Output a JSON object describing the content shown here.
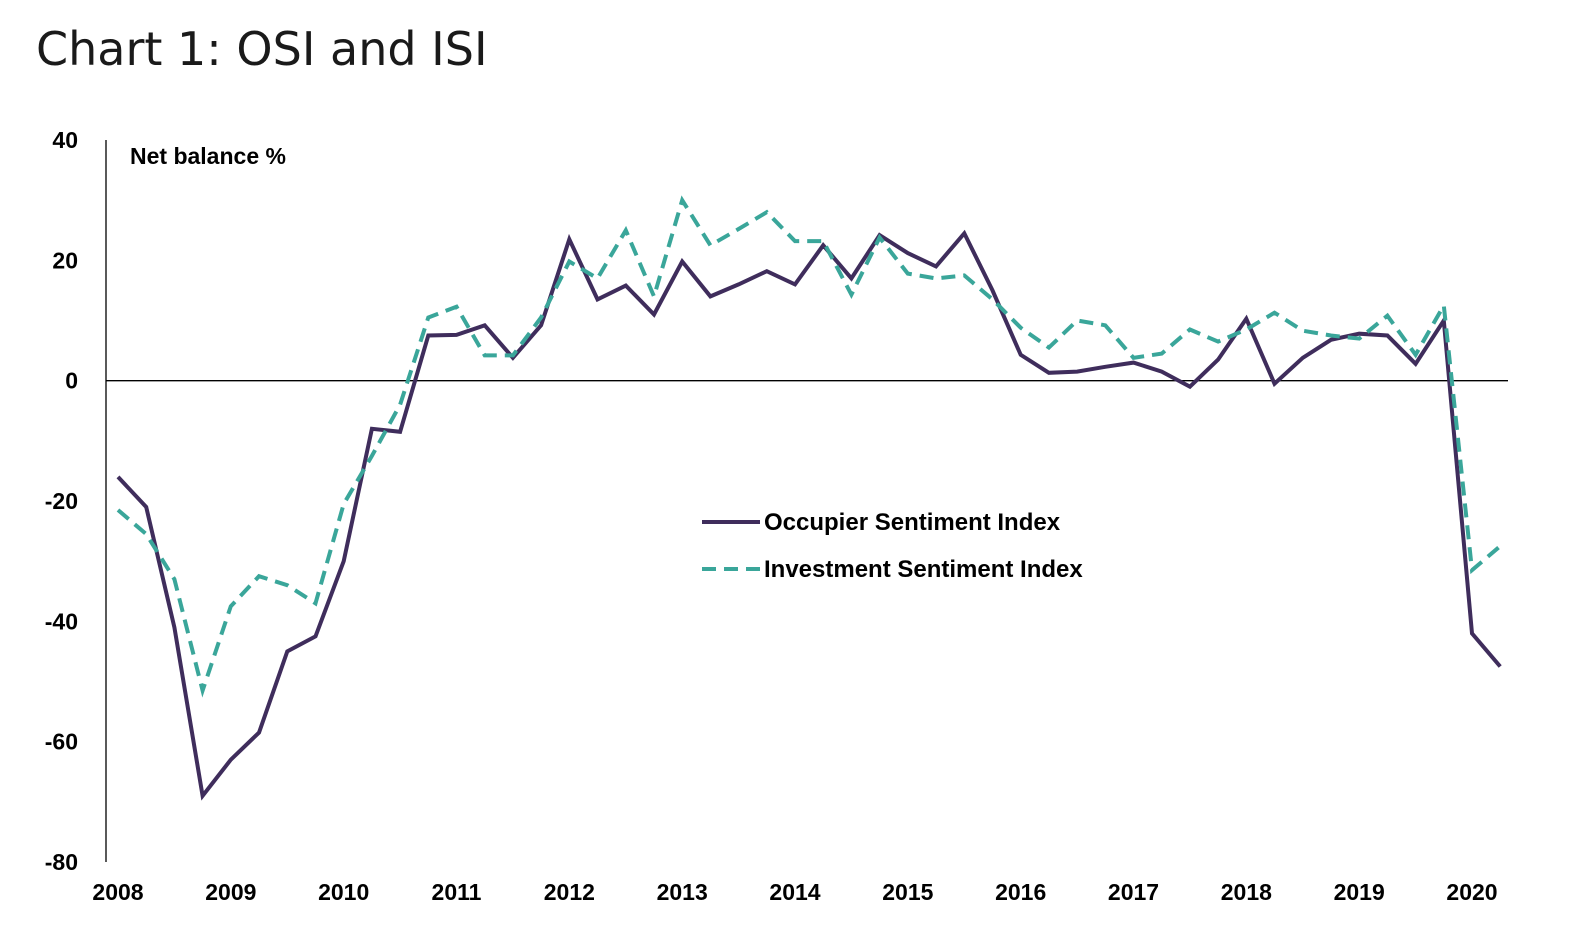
{
  "title": "Chart 1: OSI and ISI",
  "chart_data": {
    "type": "line",
    "title": "Chart 1: OSI and ISI",
    "unit_label": "Net balance %",
    "ylim": [
      -80,
      40
    ],
    "yticks": [
      40,
      20,
      0,
      -20,
      -40,
      -60,
      -80
    ],
    "xlim": [
      2008,
      2020.5
    ],
    "xticks": [
      2008,
      2009,
      2010,
      2011,
      2012,
      2013,
      2014,
      2015,
      2016,
      2017,
      2018,
      2019,
      2020
    ],
    "grid": false,
    "zero_line": true,
    "legend_position": "center-right",
    "series": [
      {
        "name": "Occupier Sentiment Index",
        "color": "#3f2d5c",
        "style": "solid",
        "x": [
          2008.0,
          2008.25,
          2008.5,
          2008.75,
          2009.0,
          2009.25,
          2009.5,
          2009.75,
          2010.0,
          2010.25,
          2010.5,
          2010.75,
          2011.0,
          2011.25,
          2011.5,
          2011.75,
          2012.0,
          2012.25,
          2012.5,
          2012.75,
          2013.0,
          2013.25,
          2013.5,
          2013.75,
          2014.0,
          2014.25,
          2014.5,
          2014.75,
          2015.0,
          2015.25,
          2015.5,
          2015.75,
          2016.0,
          2016.25,
          2016.5,
          2016.75,
          2017.0,
          2017.25,
          2017.5,
          2017.75,
          2018.0,
          2018.25,
          2018.5,
          2018.75,
          2019.0,
          2019.25,
          2019.5,
          2019.75,
          2020.0,
          2020.25
        ],
        "values": [
          -16,
          -21,
          -41,
          -69,
          -63,
          -58.5,
          -45,
          -42.5,
          -30,
          -8,
          -8.5,
          7.5,
          7.6,
          9.2,
          3.8,
          9.2,
          23.5,
          13.5,
          15.8,
          11,
          19.8,
          14,
          16,
          18.2,
          16,
          22.5,
          17,
          24.2,
          21.2,
          19,
          24.5,
          15,
          4.3,
          1.3,
          1.5,
          2.3,
          3,
          1.5,
          -1,
          3.5,
          10.3,
          -0.5,
          3.8,
          6.8,
          7.8,
          7.5,
          2.8,
          10,
          -42,
          -47.5
        ]
      },
      {
        "name": "Investment Sentiment Index",
        "color": "#3aa69a",
        "style": "dashed",
        "x": [
          2008.0,
          2008.25,
          2008.5,
          2008.75,
          2009.0,
          2009.25,
          2009.5,
          2009.75,
          2010.0,
          2010.25,
          2010.5,
          2010.75,
          2011.0,
          2011.25,
          2011.5,
          2011.75,
          2012.0,
          2012.25,
          2012.5,
          2012.75,
          2013.0,
          2013.25,
          2013.5,
          2013.75,
          2014.0,
          2014.25,
          2014.5,
          2014.75,
          2015.0,
          2015.25,
          2015.5,
          2015.75,
          2016.0,
          2016.25,
          2016.5,
          2016.75,
          2017.0,
          2017.25,
          2017.5,
          2017.75,
          2018.0,
          2018.25,
          2018.5,
          2018.75,
          2019.0,
          2019.25,
          2019.5,
          2019.75,
          2020.0,
          2020.25
        ],
        "values": [
          -21.5,
          -25.5,
          -33,
          -51.5,
          -37.5,
          -32.5,
          -34,
          -37,
          -20.5,
          -12.5,
          -4,
          10.5,
          12.3,
          4.2,
          4.2,
          10.5,
          19.8,
          17,
          25,
          14,
          30,
          22.5,
          25.2,
          28,
          23.2,
          23.2,
          14.3,
          23.8,
          17.8,
          17,
          17.5,
          13.5,
          8.8,
          5.5,
          10,
          9.2,
          3.8,
          4.5,
          8.5,
          6.5,
          8.5,
          11.3,
          8.3,
          7.5,
          7,
          10.8,
          4.3,
          12.5,
          -31.5,
          -27.5
        ]
      }
    ]
  }
}
